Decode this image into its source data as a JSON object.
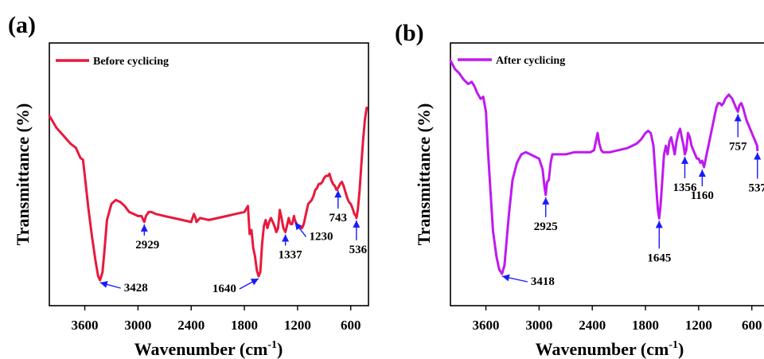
{
  "chart_data": [
    {
      "type": "line",
      "panel_label": "(a)",
      "xlabel": "Wavenumber (cm",
      "xlabel_sup": "-1",
      "xlabel_end": ")",
      "ylabel": "Transmittance (%)",
      "x_reversed": true,
      "xlim": [
        4000,
        400
      ],
      "ylim": [
        0,
        100
      ],
      "xticks": [
        3600,
        3000,
        2400,
        1800,
        1200,
        600
      ],
      "legend_position": "top-left",
      "color": "#e8193c",
      "series": [
        {
          "name": "Before cyclicing",
          "x": [
            4000,
            3920,
            3860,
            3800,
            3760,
            3730,
            3700,
            3680,
            3650,
            3620,
            3600,
            3560,
            3520,
            3480,
            3450,
            3428,
            3400,
            3380,
            3350,
            3300,
            3250,
            3200,
            3150,
            3100,
            3050,
            3000,
            2960,
            2940,
            2929,
            2910,
            2880,
            2850,
            2800,
            2700,
            2600,
            2500,
            2400,
            2370,
            2350,
            2340,
            2320,
            2300,
            2200,
            2100,
            2000,
            1900,
            1800,
            1760,
            1740,
            1720,
            1700,
            1680,
            1660,
            1640,
            1620,
            1600,
            1580,
            1560,
            1540,
            1520,
            1500,
            1480,
            1460,
            1440,
            1420,
            1400,
            1380,
            1360,
            1337,
            1320,
            1300,
            1280,
            1260,
            1240,
            1230,
            1210,
            1190,
            1170,
            1150,
            1130,
            1100,
            1080,
            1060,
            1040,
            1020,
            1000,
            980,
            960,
            940,
            920,
            900,
            880,
            860,
            840,
            820,
            800,
            780,
            760,
            743,
            720,
            700,
            680,
            660,
            640,
            620,
            600,
            580,
            560,
            540,
            536,
            520,
            500,
            480,
            460,
            440,
            420
          ],
          "y": [
            82,
            76,
            73,
            70,
            68,
            67,
            66,
            64,
            61,
            60,
            52,
            36,
            22,
            10,
            2,
            0,
            4,
            14,
            30,
            38,
            40,
            39,
            37,
            34,
            33,
            32,
            32,
            30,
            29,
            32,
            34,
            34,
            33,
            32,
            31,
            30,
            29,
            33,
            31,
            29,
            30,
            31,
            30,
            31,
            32,
            33,
            34,
            37,
            23,
            25,
            16,
            12,
            5,
            2,
            4,
            18,
            27,
            30,
            26,
            29,
            31,
            29,
            27,
            24,
            26,
            35,
            31,
            26,
            24,
            27,
            31,
            28,
            28,
            32,
            30,
            28,
            27,
            26,
            26,
            28,
            34,
            38,
            39,
            40,
            42,
            45,
            46,
            48,
            48,
            49,
            51,
            52,
            52,
            53,
            50,
            48,
            47,
            45,
            46,
            48,
            49,
            47,
            44,
            41,
            39,
            38,
            36,
            33,
            32,
            31,
            35,
            45,
            58,
            70,
            80,
            86
          ]
        }
      ],
      "annotations": [
        {
          "text": "3428",
          "x": 3428,
          "y": 0
        },
        {
          "text": "2929",
          "x": 2929,
          "y": 29
        },
        {
          "text": "1640",
          "x": 1640,
          "y": 2
        },
        {
          "text": "1337",
          "x": 1337,
          "y": 24
        },
        {
          "text": "1230",
          "x": 1230,
          "y": 30
        },
        {
          "text": "743",
          "x": 743,
          "y": 46
        },
        {
          "text": "536",
          "x": 536,
          "y": 31
        }
      ]
    },
    {
      "type": "line",
      "panel_label": "(b)",
      "xlabel": "Wavenumber (cm",
      "xlabel_sup": "-1",
      "xlabel_end": ")",
      "ylabel": "Transmittance (%)",
      "x_reversed": true,
      "xlim": [
        4000,
        400
      ],
      "ylim": [
        0,
        100
      ],
      "xticks": [
        3600,
        3000,
        2400,
        1800,
        1200,
        600
      ],
      "legend_position": "top-left",
      "color": "#bf19f0",
      "series": [
        {
          "name": "After cyclicing",
          "x": [
            4000,
            3950,
            3900,
            3850,
            3800,
            3760,
            3730,
            3700,
            3660,
            3630,
            3600,
            3580,
            3550,
            3520,
            3480,
            3450,
            3418,
            3390,
            3370,
            3340,
            3300,
            3250,
            3200,
            3150,
            3100,
            3050,
            3000,
            2960,
            2940,
            2925,
            2910,
            2890,
            2870,
            2850,
            2800,
            2700,
            2600,
            2500,
            2420,
            2380,
            2360,
            2340,
            2320,
            2300,
            2280,
            2200,
            2100,
            2000,
            1900,
            1850,
            1800,
            1770,
            1740,
            1710,
            1690,
            1670,
            1660,
            1645,
            1630,
            1610,
            1590,
            1570,
            1550,
            1530,
            1510,
            1490,
            1470,
            1450,
            1430,
            1410,
            1390,
            1370,
            1356,
            1340,
            1320,
            1300,
            1280,
            1260,
            1240,
            1220,
            1200,
            1180,
            1160,
            1140,
            1120,
            1100,
            1080,
            1060,
            1040,
            1020,
            1000,
            980,
            960,
            940,
            920,
            900,
            880,
            860,
            840,
            820,
            800,
            780,
            757,
            740,
            720,
            700,
            680,
            660,
            640,
            620,
            600,
            580,
            560,
            540,
            537
          ],
          "y": [
            100,
            96,
            94,
            91,
            89,
            90,
            88,
            85,
            82,
            83,
            76,
            60,
            40,
            20,
            8,
            2,
            0,
            4,
            14,
            28,
            44,
            52,
            56,
            57,
            56,
            55,
            54,
            49,
            41,
            37,
            43,
            44,
            52,
            56,
            56,
            56,
            57,
            57,
            57,
            58,
            62,
            66,
            61,
            58,
            57,
            57,
            58,
            59,
            61,
            63,
            66,
            67,
            66,
            60,
            48,
            36,
            30,
            26,
            32,
            44,
            56,
            60,
            56,
            62,
            64,
            60,
            56,
            62,
            66,
            68,
            64,
            60,
            56,
            58,
            66,
            64,
            60,
            58,
            56,
            54,
            54,
            52,
            53,
            50,
            54,
            58,
            62,
            66,
            70,
            74,
            78,
            80,
            80,
            79,
            80,
            82,
            83,
            84,
            83,
            82,
            80,
            78,
            76,
            79,
            80,
            78,
            75,
            72,
            70,
            68,
            66,
            64,
            62,
            60,
            58
          ]
        }
      ],
      "annotations": [
        {
          "text": "3418",
          "x": 3418,
          "y": 0
        },
        {
          "text": "2925",
          "x": 2925,
          "y": 37
        },
        {
          "text": "1645",
          "x": 1645,
          "y": 26
        },
        {
          "text": "1356",
          "x": 1356,
          "y": 56
        },
        {
          "text": "1160",
          "x": 1160,
          "y": 50
        },
        {
          "text": "757",
          "x": 757,
          "y": 76
        },
        {
          "text": "537",
          "x": 537,
          "y": 58
        }
      ]
    }
  ]
}
